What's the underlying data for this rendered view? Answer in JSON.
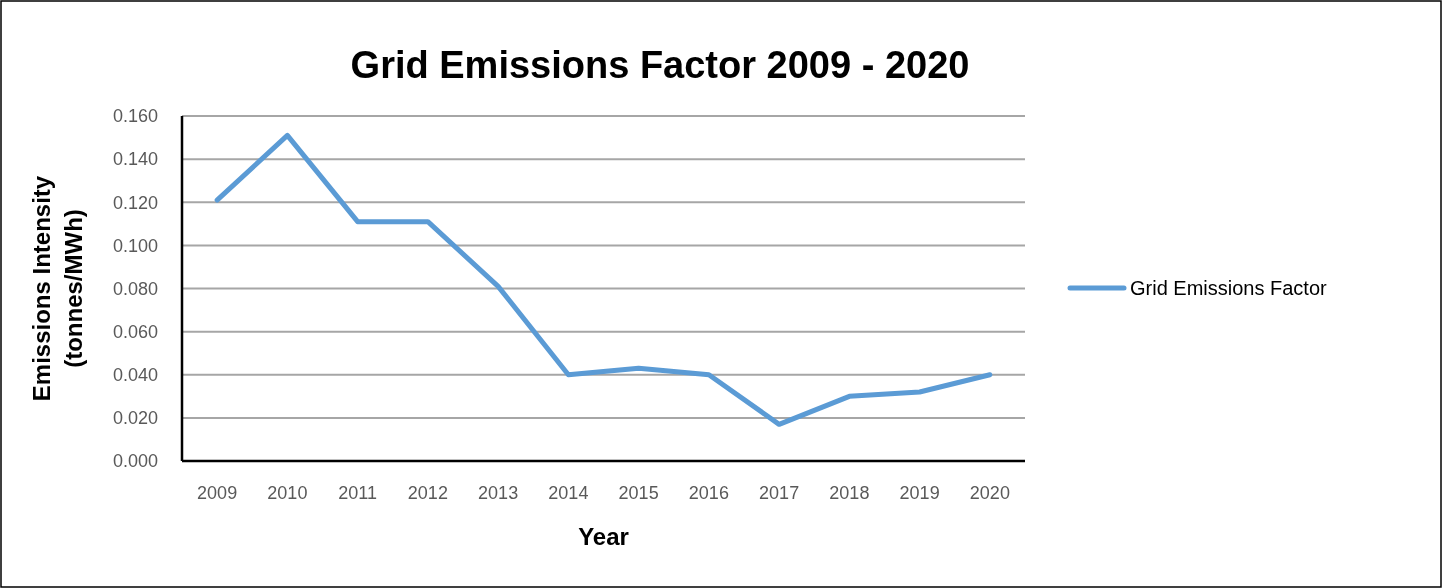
{
  "chart_data": {
    "type": "line",
    "title": "Grid Emissions Factor 2009 - 2020",
    "xlabel": "Year",
    "ylabel": "Emissions Intensity (tonnes/MWh)",
    "categories": [
      "2009",
      "2010",
      "2011",
      "2012",
      "2013",
      "2014",
      "2015",
      "2016",
      "2017",
      "2018",
      "2019",
      "2020"
    ],
    "series": [
      {
        "name": "Grid Emissions Factor",
        "color": "#5b9bd5",
        "values": [
          0.121,
          0.151,
          0.111,
          0.111,
          0.081,
          0.04,
          0.043,
          0.04,
          0.017,
          0.03,
          0.032,
          0.04
        ]
      }
    ],
    "ylim": [
      0,
      0.16
    ],
    "yticks": [
      {
        "value": 0,
        "label": "0.000"
      },
      {
        "value": 0.02,
        "label": "0.020"
      },
      {
        "value": 0.04,
        "label": "0.040"
      },
      {
        "value": 0.06,
        "label": "0.060"
      },
      {
        "value": 0.08,
        "label": "0.080"
      },
      {
        "value": 0.1,
        "label": "0.100"
      },
      {
        "value": 0.12,
        "label": "0.120"
      },
      {
        "value": 0.14,
        "label": "0.140"
      },
      {
        "value": 0.16,
        "label": "0.160"
      }
    ],
    "grid": "y",
    "legend": "right",
    "marker": "none",
    "line_style": "solid"
  }
}
